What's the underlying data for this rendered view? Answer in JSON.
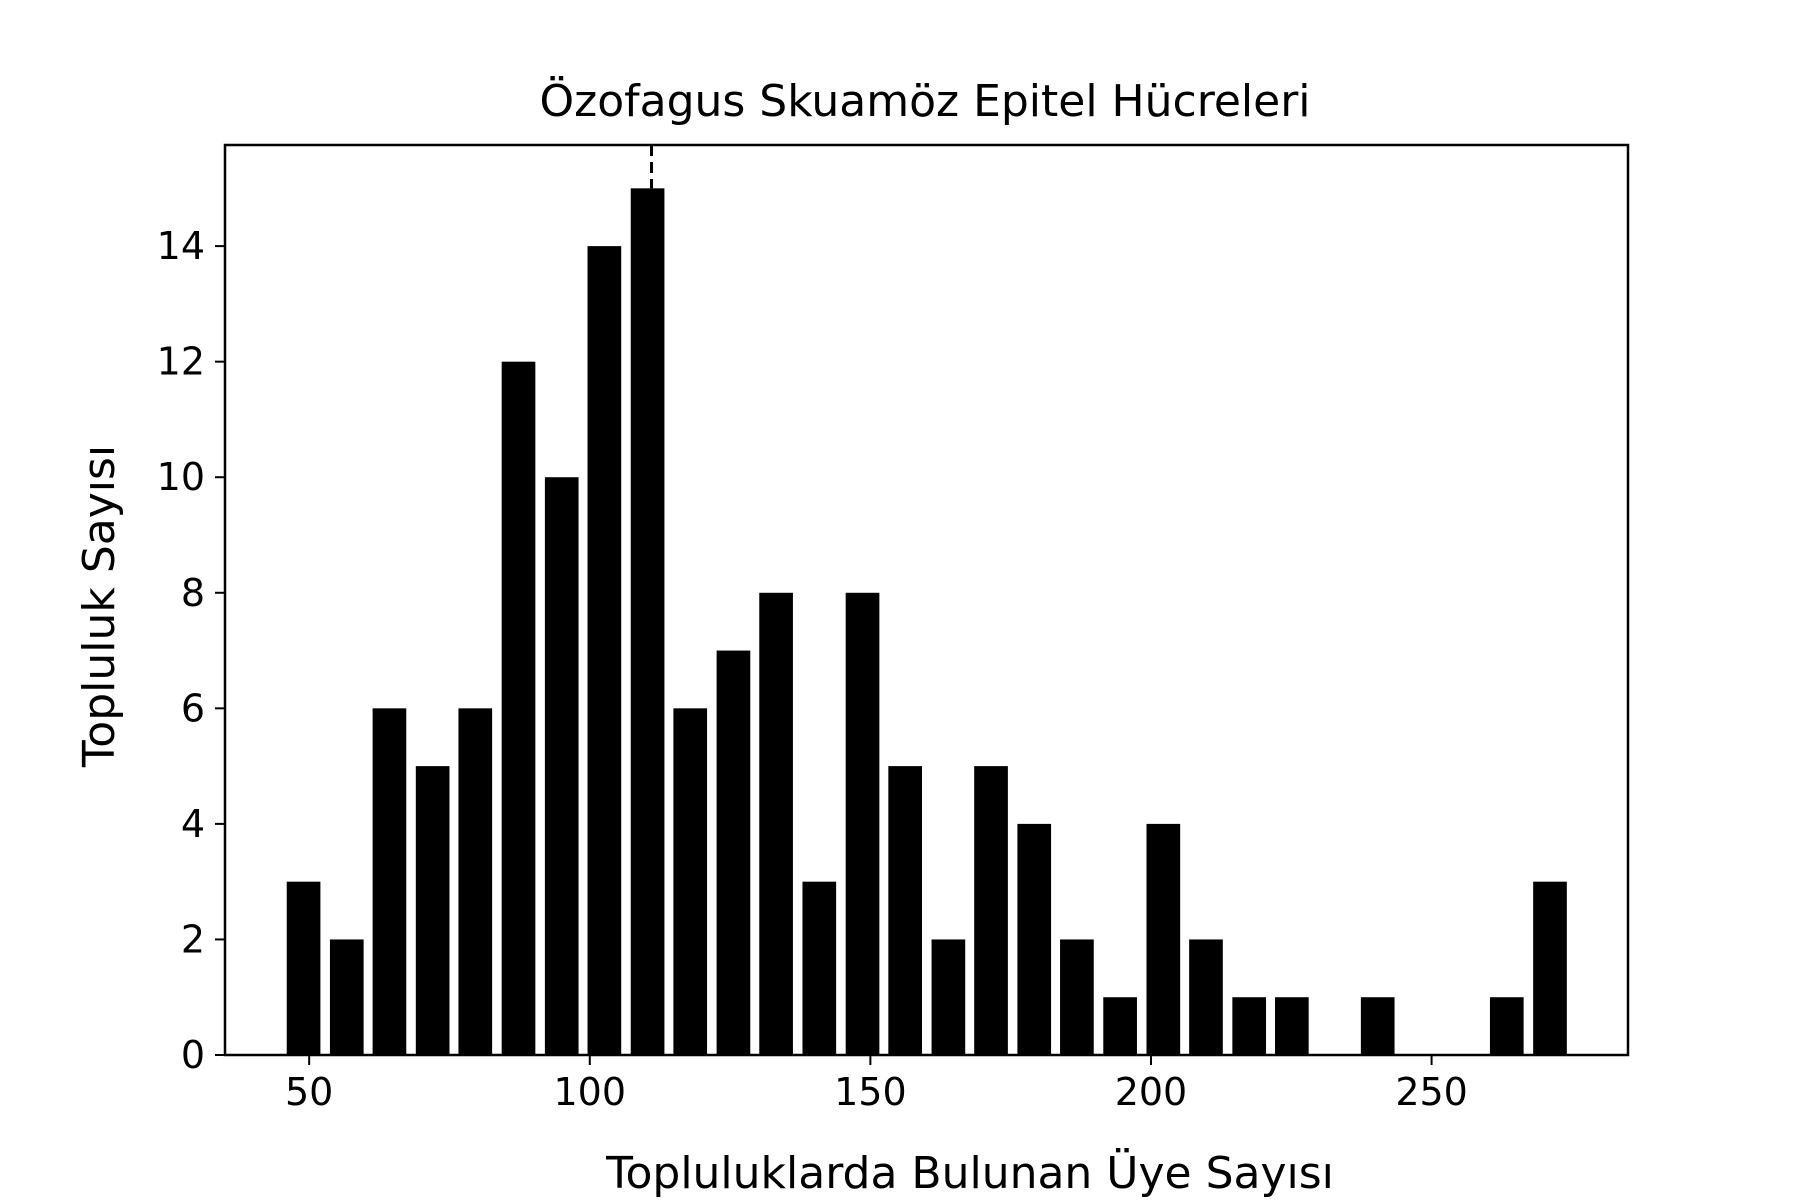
{
  "chart_data": {
    "type": "bar",
    "title": "Özofagus Skuamöz Epitel Hücreleri",
    "xlabel": "Topluluklarda Bulunan Üye Sayısı",
    "ylabel": "Topluluk Sayısı",
    "xlim": [
      35,
      285
    ],
    "ylim": [
      0,
      15.75
    ],
    "xticks": [
      50,
      100,
      150,
      200,
      250
    ],
    "yticks": [
      0,
      2,
      4,
      6,
      8,
      10,
      12,
      14
    ],
    "bar_width": 6,
    "bar_color": "#000000",
    "grid": false,
    "x": [
      49,
      56.7,
      64.3,
      72,
      79.6,
      87.3,
      95,
      102.6,
      110.3,
      117.9,
      125.6,
      133.2,
      140.9,
      148.6,
      156.2,
      163.9,
      171.5,
      179.2,
      186.8,
      194.5,
      202.2,
      209.8,
      217.5,
      225.1,
      240.4,
      263.4,
      271.1
    ],
    "values": [
      3,
      2,
      6,
      5,
      6,
      12,
      10,
      14,
      15,
      6,
      7,
      8,
      3,
      8,
      5,
      2,
      5,
      4,
      2,
      1,
      4,
      2,
      1,
      1,
      1,
      1,
      3
    ],
    "reference_line": {
      "x": 111,
      "style": "dashed"
    }
  }
}
